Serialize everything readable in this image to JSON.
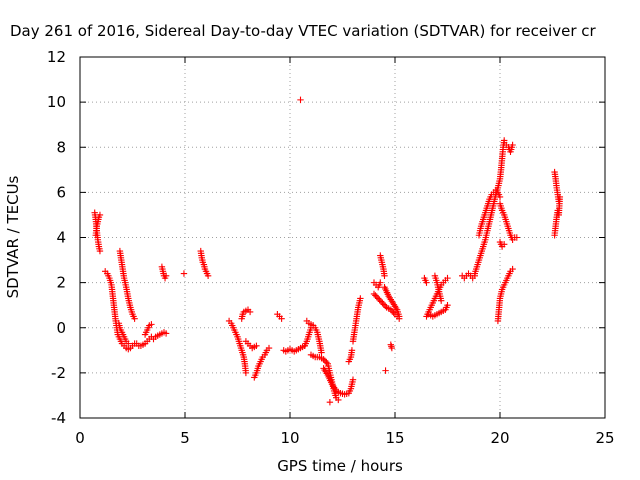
{
  "chart_data": {
    "type": "scatter",
    "title": "Day 261 of 2016, Sidereal Day-to-day VTEC variation (SDTVAR) for receiver cr",
    "xlabel": "GPS time / hours",
    "ylabel": "SDTVAR / TECUs",
    "xlim": [
      0,
      25
    ],
    "ylim": [
      -4,
      12
    ],
    "xticks": [
      0,
      5,
      10,
      15,
      20,
      25
    ],
    "yticks": [
      -4,
      -2,
      0,
      2,
      4,
      6,
      8,
      10,
      12
    ],
    "grid": true,
    "marker": "plus",
    "color": "#ff0000",
    "segments": [
      [
        [
          0.7,
          5.1
        ],
        [
          0.75,
          4.8
        ],
        [
          0.8,
          4.3
        ],
        [
          0.85,
          3.9
        ],
        [
          0.9,
          3.6
        ],
        [
          0.95,
          3.4
        ]
      ],
      [
        [
          0.75,
          4.1
        ],
        [
          0.8,
          4.5
        ],
        [
          0.9,
          4.9
        ],
        [
          0.95,
          5.0
        ]
      ],
      [
        [
          1.2,
          2.5
        ],
        [
          1.3,
          2.4
        ],
        [
          1.4,
          2.2
        ],
        [
          1.5,
          1.9
        ],
        [
          1.55,
          1.5
        ],
        [
          1.6,
          1.1
        ],
        [
          1.65,
          0.7
        ],
        [
          1.7,
          0.3
        ],
        [
          1.75,
          0.0
        ],
        [
          1.8,
          -0.3
        ],
        [
          1.9,
          -0.5
        ],
        [
          2.0,
          -0.7
        ],
        [
          2.1,
          -0.8
        ],
        [
          2.2,
          -0.9
        ],
        [
          2.3,
          -0.95
        ],
        [
          2.4,
          -0.9
        ],
        [
          2.5,
          -0.8
        ],
        [
          2.6,
          -0.7
        ]
      ],
      [
        [
          1.9,
          3.4
        ],
        [
          1.95,
          3.1
        ],
        [
          2.0,
          2.8
        ],
        [
          2.05,
          2.5
        ],
        [
          2.1,
          2.2
        ],
        [
          2.2,
          1.8
        ],
        [
          2.3,
          1.3
        ],
        [
          2.4,
          0.9
        ],
        [
          2.5,
          0.6
        ],
        [
          2.6,
          0.4
        ]
      ],
      [
        [
          1.85,
          0.2
        ],
        [
          1.9,
          0.0
        ],
        [
          2.0,
          -0.2
        ],
        [
          2.1,
          -0.4
        ],
        [
          2.2,
          -0.6
        ],
        [
          2.3,
          -0.7
        ]
      ],
      [
        [
          2.7,
          -0.7
        ],
        [
          2.8,
          -0.8
        ],
        [
          2.9,
          -0.8
        ],
        [
          3.0,
          -0.75
        ],
        [
          3.1,
          -0.7
        ],
        [
          3.2,
          -0.6
        ],
        [
          3.3,
          -0.5
        ],
        [
          3.4,
          -0.4
        ]
      ],
      [
        [
          3.1,
          -0.3
        ],
        [
          3.2,
          -0.1
        ],
        [
          3.3,
          0.1
        ],
        [
          3.4,
          0.15
        ]
      ],
      [
        [
          3.5,
          -0.5
        ],
        [
          3.6,
          -0.4
        ],
        [
          3.7,
          -0.35
        ],
        [
          3.8,
          -0.3
        ],
        [
          3.9,
          -0.25
        ],
        [
          4.0,
          -0.2
        ],
        [
          4.1,
          -0.25
        ]
      ],
      [
        [
          3.9,
          2.7
        ],
        [
          3.95,
          2.5
        ],
        [
          4.0,
          2.3
        ],
        [
          4.05,
          2.2
        ],
        [
          4.1,
          2.3
        ]
      ],
      [
        [
          4.95,
          2.4
        ]
      ],
      [
        [
          5.75,
          3.4
        ],
        [
          5.8,
          3.1
        ],
        [
          5.85,
          2.9
        ],
        [
          5.9,
          2.8
        ],
        [
          5.95,
          2.6
        ],
        [
          6.0,
          2.5
        ],
        [
          6.05,
          2.4
        ],
        [
          6.1,
          2.3
        ]
      ],
      [
        [
          7.1,
          0.3
        ],
        [
          7.2,
          0.2
        ],
        [
          7.3,
          0.0
        ],
        [
          7.4,
          -0.2
        ],
        [
          7.5,
          -0.4
        ],
        [
          7.6,
          -0.7
        ],
        [
          7.7,
          -1.0
        ],
        [
          7.8,
          -1.3
        ],
        [
          7.85,
          -1.6
        ],
        [
          7.9,
          -2.0
        ]
      ],
      [
        [
          7.7,
          0.4
        ],
        [
          7.75,
          0.6
        ],
        [
          7.8,
          0.7
        ],
        [
          7.9,
          0.75
        ],
        [
          8.0,
          0.8
        ],
        [
          8.1,
          0.7
        ]
      ],
      [
        [
          7.9,
          -0.6
        ],
        [
          8.0,
          -0.7
        ],
        [
          8.1,
          -0.8
        ],
        [
          8.2,
          -0.9
        ],
        [
          8.3,
          -0.85
        ],
        [
          8.4,
          -0.8
        ]
      ],
      [
        [
          8.3,
          -2.2
        ],
        [
          8.4,
          -2.0
        ],
        [
          8.5,
          -1.7
        ],
        [
          8.6,
          -1.5
        ],
        [
          8.7,
          -1.3
        ],
        [
          8.8,
          -1.2
        ],
        [
          8.9,
          -1.0
        ],
        [
          9.0,
          -0.9
        ]
      ],
      [
        [
          9.4,
          0.6
        ],
        [
          9.5,
          0.5
        ],
        [
          9.6,
          0.4
        ]
      ],
      [
        [
          9.7,
          -1.0
        ],
        [
          9.8,
          -1.05
        ],
        [
          9.9,
          -1.0
        ],
        [
          10.0,
          -0.95
        ],
        [
          10.1,
          -1.0
        ],
        [
          10.2,
          -1.05
        ],
        [
          10.3,
          -1.0
        ],
        [
          10.4,
          -0.95
        ],
        [
          10.5,
          -0.9
        ],
        [
          10.6,
          -0.85
        ],
        [
          10.7,
          -0.8
        ]
      ],
      [
        [
          10.5,
          10.1
        ]
      ],
      [
        [
          10.7,
          -0.8
        ],
        [
          10.8,
          -0.6
        ],
        [
          10.9,
          -0.3
        ],
        [
          11.0,
          0.0
        ],
        [
          11.1,
          0.1
        ],
        [
          11.2,
          0.0
        ],
        [
          11.3,
          -0.2
        ],
        [
          11.4,
          -0.6
        ],
        [
          11.5,
          -1.1
        ]
      ],
      [
        [
          10.8,
          0.3
        ],
        [
          10.9,
          0.2
        ],
        [
          11.0,
          0.15
        ],
        [
          11.1,
          0.1
        ]
      ],
      [
        [
          11.0,
          -1.2
        ],
        [
          11.2,
          -1.3
        ],
        [
          11.4,
          -1.3
        ],
        [
          11.6,
          -1.4
        ],
        [
          11.8,
          -1.6
        ],
        [
          11.9,
          -2.0
        ],
        [
          12.0,
          -2.4
        ],
        [
          12.1,
          -2.8
        ],
        [
          12.2,
          -3.1
        ],
        [
          12.3,
          -3.2
        ]
      ],
      [
        [
          11.6,
          -1.8
        ],
        [
          11.8,
          -2.1
        ],
        [
          12.0,
          -2.5
        ],
        [
          12.2,
          -2.8
        ],
        [
          12.4,
          -2.9
        ],
        [
          12.6,
          -2.95
        ],
        [
          12.8,
          -2.9
        ],
        [
          12.9,
          -2.7
        ],
        [
          13.0,
          -2.3
        ]
      ],
      [
        [
          11.9,
          -3.3
        ]
      ],
      [
        [
          12.8,
          -1.5
        ],
        [
          12.9,
          -1.3
        ],
        [
          12.95,
          -1.0
        ]
      ],
      [
        [
          13.0,
          -0.6
        ],
        [
          13.05,
          -0.3
        ],
        [
          13.1,
          0.0
        ],
        [
          13.15,
          0.3
        ],
        [
          13.2,
          0.6
        ],
        [
          13.25,
          0.9
        ],
        [
          13.3,
          1.1
        ],
        [
          13.35,
          1.3
        ]
      ],
      [
        [
          14.0,
          2.0
        ],
        [
          14.1,
          1.9
        ],
        [
          14.2,
          1.8
        ],
        [
          14.3,
          2.0
        ]
      ],
      [
        [
          14.3,
          3.2
        ],
        [
          14.35,
          3.0
        ],
        [
          14.4,
          2.8
        ],
        [
          14.45,
          2.6
        ],
        [
          14.5,
          2.3
        ]
      ],
      [
        [
          14.0,
          1.5
        ],
        [
          14.2,
          1.3
        ],
        [
          14.4,
          1.1
        ],
        [
          14.6,
          0.9
        ],
        [
          14.8,
          0.8
        ],
        [
          15.0,
          0.6
        ],
        [
          15.1,
          0.5
        ],
        [
          15.2,
          0.4
        ]
      ],
      [
        [
          14.5,
          1.8
        ],
        [
          14.7,
          1.4
        ],
        [
          14.9,
          1.1
        ],
        [
          15.1,
          0.8
        ],
        [
          15.2,
          0.5
        ]
      ],
      [
        [
          14.55,
          -1.9
        ]
      ],
      [
        [
          14.8,
          -0.75
        ],
        [
          14.85,
          -0.9
        ]
      ],
      [
        [
          16.4,
          2.2
        ],
        [
          16.5,
          2.0
        ]
      ],
      [
        [
          16.5,
          0.5
        ],
        [
          16.6,
          0.7
        ],
        [
          16.7,
          0.9
        ],
        [
          16.8,
          1.1
        ],
        [
          16.9,
          1.3
        ],
        [
          17.0,
          1.5
        ],
        [
          17.1,
          1.7
        ],
        [
          17.2,
          1.9
        ],
        [
          17.3,
          2.0
        ],
        [
          17.4,
          2.1
        ],
        [
          17.5,
          2.2
        ]
      ],
      [
        [
          16.6,
          0.6
        ],
        [
          16.8,
          0.5
        ],
        [
          17.0,
          0.6
        ],
        [
          17.2,
          0.7
        ],
        [
          17.4,
          0.8
        ],
        [
          17.5,
          1.0
        ]
      ],
      [
        [
          16.9,
          2.3
        ],
        [
          17.0,
          2.0
        ],
        [
          17.1,
          1.6
        ],
        [
          17.2,
          1.2
        ]
      ],
      [
        [
          18.2,
          2.3
        ],
        [
          18.3,
          2.2
        ],
        [
          18.4,
          2.3
        ],
        [
          18.5,
          2.4
        ],
        [
          18.6,
          2.3
        ],
        [
          18.7,
          2.2
        ],
        [
          18.8,
          2.3
        ]
      ],
      [
        [
          18.8,
          2.4
        ],
        [
          18.9,
          2.7
        ],
        [
          19.0,
          3.0
        ],
        [
          19.1,
          3.3
        ],
        [
          19.2,
          3.6
        ],
        [
          19.3,
          3.9
        ],
        [
          19.4,
          4.3
        ],
        [
          19.5,
          4.7
        ],
        [
          19.6,
          5.1
        ],
        [
          19.7,
          5.5
        ],
        [
          19.8,
          5.9
        ],
        [
          19.9,
          6.2
        ],
        [
          20.0,
          6.6
        ],
        [
          20.05,
          7.0
        ],
        [
          20.1,
          7.5
        ],
        [
          20.15,
          8.0
        ],
        [
          20.2,
          8.3
        ]
      ],
      [
        [
          19.0,
          4.1
        ],
        [
          19.1,
          4.5
        ],
        [
          19.2,
          4.8
        ],
        [
          19.3,
          5.1
        ],
        [
          19.4,
          5.4
        ],
        [
          19.5,
          5.7
        ],
        [
          19.6,
          5.9
        ],
        [
          19.7,
          6.0
        ],
        [
          19.8,
          6.1
        ],
        [
          19.9,
          6.0
        ],
        [
          20.0,
          5.8
        ]
      ],
      [
        [
          20.2,
          8.2
        ],
        [
          20.3,
          8.1
        ],
        [
          20.4,
          8.0
        ],
        [
          20.5,
          7.8
        ],
        [
          20.6,
          8.1
        ]
      ],
      [
        [
          20.0,
          5.5
        ],
        [
          20.1,
          5.2
        ],
        [
          20.2,
          5.0
        ],
        [
          20.3,
          4.7
        ],
        [
          20.4,
          4.4
        ],
        [
          20.5,
          4.1
        ],
        [
          20.6,
          3.9
        ],
        [
          20.7,
          4.0
        ],
        [
          20.8,
          4.0
        ]
      ],
      [
        [
          19.9,
          0.3
        ],
        [
          19.95,
          0.8
        ],
        [
          20.0,
          1.3
        ],
        [
          20.1,
          1.7
        ],
        [
          20.2,
          1.9
        ],
        [
          20.3,
          2.1
        ],
        [
          20.4,
          2.3
        ],
        [
          20.5,
          2.5
        ],
        [
          20.6,
          2.6
        ]
      ],
      [
        [
          20.0,
          3.8
        ],
        [
          20.1,
          3.6
        ],
        [
          20.2,
          3.7
        ]
      ],
      [
        [
          22.6,
          6.9
        ],
        [
          22.65,
          6.6
        ],
        [
          22.7,
          6.2
        ],
        [
          22.75,
          5.9
        ],
        [
          22.8,
          5.6
        ]
      ],
      [
        [
          22.6,
          4.1
        ],
        [
          22.65,
          4.5
        ],
        [
          22.7,
          4.9
        ],
        [
          22.75,
          5.2
        ],
        [
          22.8,
          5.0
        ],
        [
          22.85,
          5.8
        ]
      ]
    ]
  }
}
